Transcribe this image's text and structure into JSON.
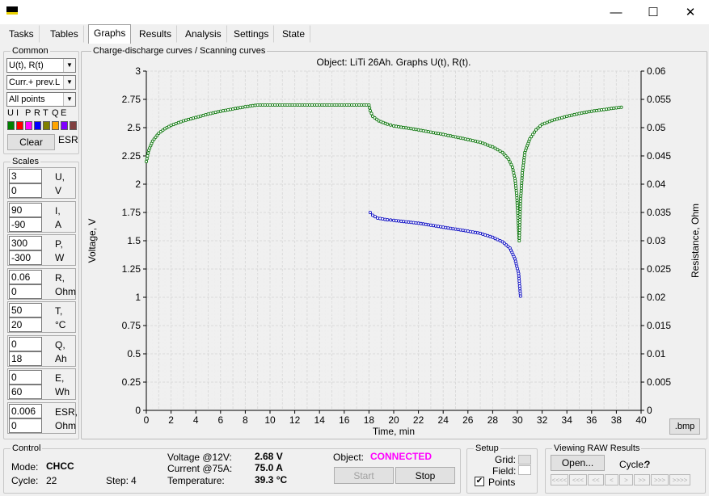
{
  "window": {
    "controls": {
      "minimize": "—",
      "maximize": "☐",
      "close": "✕"
    }
  },
  "tabs": [
    "Tasks",
    "Tables",
    "Graphs",
    "Results",
    "Analysis",
    "Settings",
    "State"
  ],
  "active_tab": "Graphs",
  "common": {
    "title": "Common",
    "combo1": "U(t), R(t)",
    "combo2": "Curr.+ prev.L",
    "combo3": "All points",
    "letters": [
      "U",
      "I",
      "P",
      "R",
      "T",
      "Q",
      "E"
    ],
    "swatch_colors": [
      "#008000",
      "#ff0000",
      "#ff00ff",
      "#0000ff",
      "#808000",
      "#ffa500",
      "#8000ff",
      "#804040"
    ],
    "clear_label": "Clear",
    "esr_label": "ESR"
  },
  "scales": {
    "title": "Scales",
    "rows": [
      {
        "max": "3",
        "min": "0",
        "name": "U,",
        "unit": "V"
      },
      {
        "max": "90",
        "min": "-90",
        "name": "I,",
        "unit": "A"
      },
      {
        "max": "300",
        "min": "-300",
        "name": "P,",
        "unit": "W"
      },
      {
        "max": "0.06",
        "min": "0",
        "name": "R,",
        "unit": "Ohm"
      },
      {
        "max": "50",
        "min": "20",
        "name": "T,",
        "unit": "°C"
      },
      {
        "max": "0",
        "min": "18",
        "name": "Q,",
        "unit": "Ah"
      },
      {
        "max": "0",
        "min": "60",
        "name": "E,",
        "unit": "Wh"
      },
      {
        "max": "0.006",
        "min": "0",
        "name": "ESR,",
        "unit": "Ohm"
      }
    ]
  },
  "chart_group_title": "Charge-discharge curves / Scanning curves",
  "bmp_label": ".bmp",
  "chart_data": {
    "type": "line",
    "title": "Object: LiTi 26Ah. Graphs U(t), R(t).",
    "xlabel": "Time, min",
    "ylabel": "Voltage, V",
    "y2label": "Resistance, Ohm",
    "xlim": [
      0,
      40
    ],
    "ylim": [
      0,
      3
    ],
    "y2lim": [
      0,
      0.06
    ],
    "x_ticks": [
      "0",
      "2",
      "4",
      "6",
      "8",
      "10",
      "12",
      "14",
      "16",
      "18",
      "20",
      "22",
      "24",
      "26",
      "28",
      "30",
      "32",
      "34",
      "36",
      "38",
      "40"
    ],
    "y_ticks": [
      "0",
      "0.25",
      "0.5",
      "0.75",
      "1",
      "1.25",
      "1.5",
      "1.75",
      "2",
      "2.25",
      "2.5",
      "2.75",
      "3"
    ],
    "y2_ticks": [
      "0",
      "0.005",
      "0.01",
      "0.015",
      "0.02",
      "0.025",
      "0.03",
      "0.035",
      "0.04",
      "0.045",
      "0.05",
      "0.055",
      "0.06"
    ],
    "grid": true,
    "series": [
      {
        "axis": "left",
        "color": "#007000",
        "points": [
          [
            0,
            2.2
          ],
          [
            0.2,
            2.3
          ],
          [
            0.5,
            2.38
          ],
          [
            1,
            2.45
          ],
          [
            1.5,
            2.49
          ],
          [
            2,
            2.52
          ],
          [
            3,
            2.56
          ],
          [
            4,
            2.59
          ],
          [
            5,
            2.62
          ],
          [
            6,
            2.645
          ],
          [
            7,
            2.665
          ],
          [
            8,
            2.685
          ],
          [
            9,
            2.7
          ],
          [
            10,
            2.7
          ],
          [
            12,
            2.7
          ],
          [
            14,
            2.7
          ],
          [
            16,
            2.7
          ],
          [
            18,
            2.7
          ],
          [
            18.1,
            2.65
          ],
          [
            18.3,
            2.6
          ],
          [
            18.8,
            2.56
          ],
          [
            19.5,
            2.53
          ],
          [
            20,
            2.515
          ],
          [
            22,
            2.48
          ],
          [
            24,
            2.44
          ],
          [
            26,
            2.395
          ],
          [
            27,
            2.37
          ],
          [
            28,
            2.33
          ],
          [
            28.8,
            2.28
          ],
          [
            29.3,
            2.22
          ],
          [
            29.6,
            2.15
          ],
          [
            29.8,
            2.05
          ],
          [
            29.95,
            1.9
          ],
          [
            30.05,
            1.7
          ],
          [
            30.15,
            1.5
          ],
          [
            30.25,
            1.85
          ],
          [
            30.4,
            2.1
          ],
          [
            30.6,
            2.28
          ],
          [
            31,
            2.4
          ],
          [
            31.5,
            2.48
          ],
          [
            32,
            2.53
          ],
          [
            33,
            2.57
          ],
          [
            34,
            2.6
          ],
          [
            35,
            2.625
          ],
          [
            36,
            2.645
          ],
          [
            37,
            2.66
          ],
          [
            38,
            2.675
          ],
          [
            38.4,
            2.68
          ]
        ]
      },
      {
        "axis": "right",
        "color": "#0000c0",
        "points": [
          [
            18.1,
            0.035
          ],
          [
            18.3,
            0.0345
          ],
          [
            18.7,
            0.034
          ],
          [
            19.5,
            0.0337
          ],
          [
            20,
            0.0336
          ],
          [
            22,
            0.0331
          ],
          [
            24,
            0.0324
          ],
          [
            26,
            0.0317
          ],
          [
            27,
            0.0313
          ],
          [
            28,
            0.0306
          ],
          [
            28.8,
            0.0298
          ],
          [
            29.4,
            0.0287
          ],
          [
            29.8,
            0.0268
          ],
          [
            30.1,
            0.0242
          ],
          [
            30.25,
            0.0202
          ]
        ]
      }
    ]
  },
  "control": {
    "title": "Control",
    "mode_label": "Mode:",
    "mode_value": "CHCC",
    "cycle_label": "Cycle:",
    "cycle_value": "22",
    "step_label": "Step:",
    "step_value": "4",
    "voltage_label": "Voltage @12V:",
    "voltage_value": "2.68 V",
    "current_label": "Current @75A:",
    "current_value": "75.0 A",
    "temp_label": "Temperature:",
    "temp_value": "39.3 °C",
    "object_label": "Object:",
    "object_value": "CONNECTED",
    "start_label": "Start",
    "stop_label": "Stop"
  },
  "setup": {
    "title": "Setup",
    "grid_label": "Grid:",
    "field_label": "Field:",
    "points_label": "Points",
    "points_checked": "✔"
  },
  "raw": {
    "title": "Viewing RAW Results",
    "open_label": "Open...",
    "cycle_label": "Cycle:",
    "cycle_value": "?",
    "nav": [
      "<<<<",
      "<<<",
      "<<",
      "<",
      ">",
      ">>",
      ">>>",
      ">>>>"
    ]
  }
}
